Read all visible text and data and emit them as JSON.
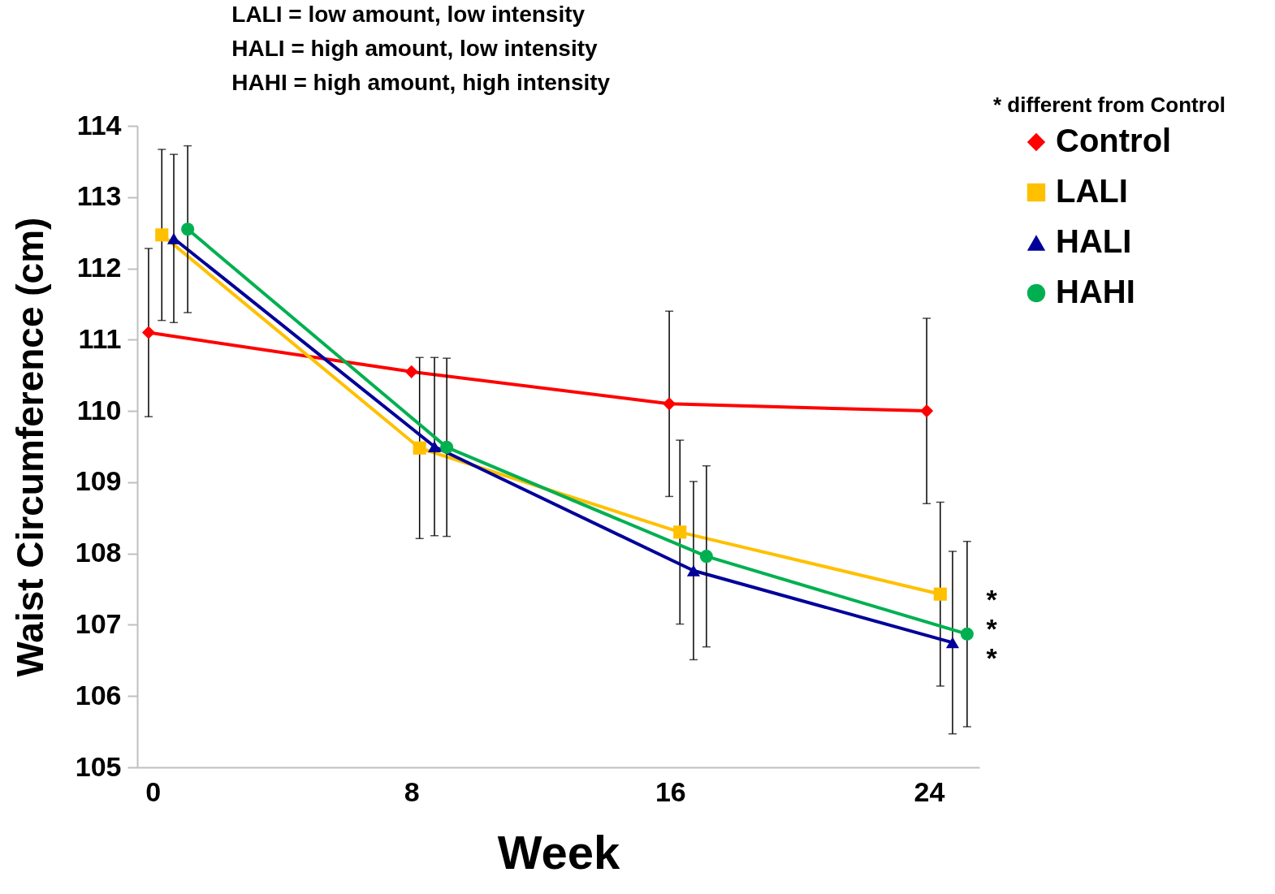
{
  "chart_data": {
    "type": "line",
    "xlabel": "Week",
    "ylabel": "Waist Circumference (cm)",
    "xlim": [
      -0.48,
      25.56
    ],
    "xticks": [
      0,
      8,
      16,
      24
    ],
    "ylim": [
      105,
      114
    ],
    "yticks": [
      105,
      106,
      107,
      108,
      109,
      110,
      111,
      112,
      113,
      114
    ],
    "legend": "right",
    "grid": false,
    "line_style": "solid",
    "series": [
      {
        "name": "Control",
        "color": "#ff0000",
        "marker": "diamond",
        "x": [
          -0.13,
          8.0,
          15.97,
          23.93
        ],
        "values": [
          111.1,
          110.55,
          110.1,
          110.0
        ],
        "errors": [
          1.18,
          null,
          1.3,
          1.3
        ]
      },
      {
        "name": "LALI",
        "color": "#ffc000",
        "marker": "square",
        "x": [
          0.28,
          8.25,
          16.3,
          24.35
        ],
        "values": [
          112.47,
          109.48,
          108.3,
          107.43
        ],
        "errors": [
          1.2,
          1.27,
          1.29,
          1.29
        ]
      },
      {
        "name": "HALI",
        "color": "#000099",
        "marker": "triangle",
        "x": [
          0.65,
          8.71,
          16.72,
          24.73
        ],
        "values": [
          112.42,
          109.5,
          107.76,
          106.75
        ],
        "errors": [
          1.18,
          1.25,
          1.25,
          1.28
        ]
      },
      {
        "name": "HAHI",
        "color": "#00b050",
        "marker": "circle",
        "x": [
          1.08,
          9.09,
          17.12,
          25.18
        ],
        "values": [
          112.55,
          109.49,
          107.96,
          106.87
        ],
        "errors": [
          1.17,
          1.25,
          1.27,
          1.3
        ]
      }
    ],
    "annotations": [
      "LALI  =  low amount, low intensity",
      "HALI =  high amount, low intensity",
      "HAHI =  high amount, high intensity",
      "*  different from Control",
      "*",
      "*",
      "*"
    ]
  }
}
